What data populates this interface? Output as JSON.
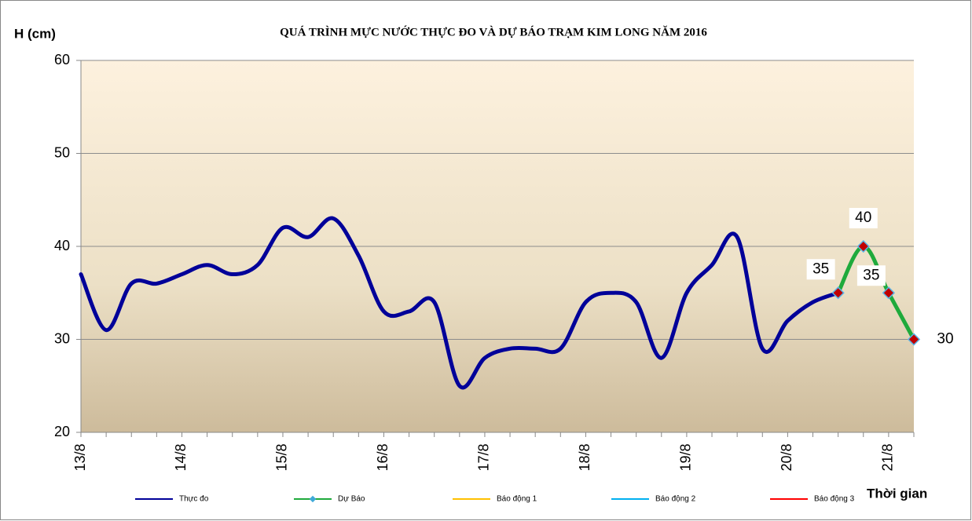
{
  "chart_data": {
    "type": "line",
    "title": "QUÁ TRÌNH MỰC NƯỚC THỰC ĐO VÀ DỰ BÁO TRẠM KIM LONG NĂM 2016",
    "y_label": "H (cm)",
    "x_label": "Thời gian",
    "categories": [
      "13/8",
      null,
      null,
      null,
      "14/8",
      null,
      null,
      null,
      "15/8",
      null,
      null,
      null,
      "16/8",
      null,
      null,
      null,
      "17/8",
      null,
      null,
      null,
      "18/8",
      null,
      null,
      null,
      "19/8",
      null,
      null,
      null,
      "20/8",
      null,
      null,
      null,
      "21/8",
      null
    ],
    "series": [
      {
        "name": "Thực đo",
        "color": "#000099",
        "values": [
          37,
          31,
          36,
          36,
          37,
          38,
          37,
          38,
          42,
          41,
          43,
          39,
          33,
          33,
          34,
          25,
          28,
          29,
          29,
          29,
          34,
          35,
          34,
          28,
          35,
          38,
          41,
          29,
          32,
          34,
          35,
          null,
          null,
          null
        ]
      },
      {
        "name": "Dự Báo",
        "color": "#1faa3c",
        "values": [
          null,
          null,
          null,
          null,
          null,
          null,
          null,
          null,
          null,
          null,
          null,
          null,
          null,
          null,
          null,
          null,
          null,
          null,
          null,
          null,
          null,
          null,
          null,
          null,
          null,
          null,
          null,
          null,
          null,
          null,
          35,
          40,
          35,
          30
        ],
        "data_labels": true
      },
      {
        "name": "Báo động 1",
        "color": "#ffc000",
        "values": [
          null,
          null,
          null,
          null,
          null,
          null,
          null,
          null,
          null,
          null,
          null,
          null,
          null,
          null,
          null,
          null,
          null,
          null,
          null,
          null,
          null,
          null,
          null,
          null,
          null,
          null,
          null,
          null,
          null,
          null,
          null,
          null,
          null,
          null
        ]
      },
      {
        "name": "Báo động 2",
        "color": "#00b0f0",
        "values": [
          null,
          null,
          null,
          null,
          null,
          null,
          null,
          null,
          null,
          null,
          null,
          null,
          null,
          null,
          null,
          null,
          null,
          null,
          null,
          null,
          null,
          null,
          null,
          null,
          null,
          null,
          null,
          null,
          null,
          null,
          null,
          null,
          null,
          null
        ]
      },
      {
        "name": "Báo động 3",
        "color": "#ff0000",
        "values": [
          null,
          null,
          null,
          null,
          null,
          null,
          null,
          null,
          null,
          null,
          null,
          null,
          null,
          null,
          null,
          null,
          null,
          null,
          null,
          null,
          null,
          null,
          null,
          null,
          null,
          null,
          null,
          null,
          null,
          null,
          null,
          null,
          null,
          null
        ]
      }
    ],
    "ylim": [
      20,
      60
    ],
    "yticks": [
      20,
      30,
      40,
      50,
      60
    ],
    "grid": true
  }
}
